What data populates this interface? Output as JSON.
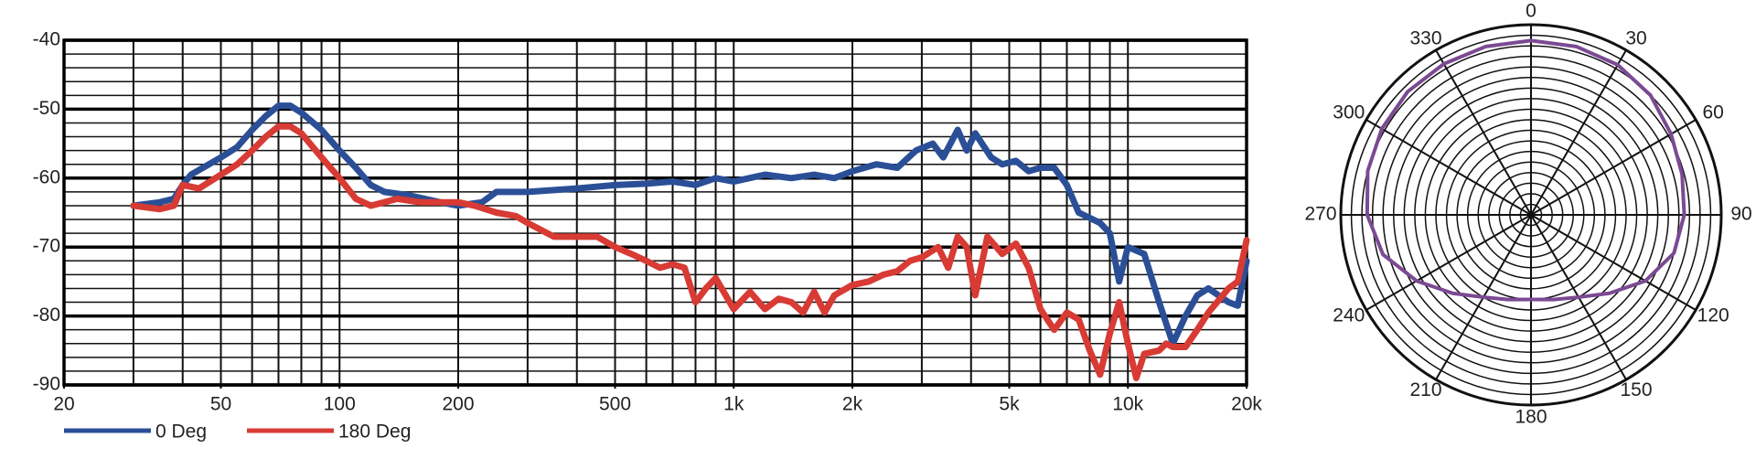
{
  "chart_data": [
    {
      "type": "line",
      "xscale": "log",
      "xlim": [
        20,
        20000
      ],
      "ylim": [
        -90,
        -40
      ],
      "yticks": [
        -40,
        -50,
        -60,
        -70,
        -80,
        -90
      ],
      "xticks": [
        20,
        50,
        100,
        200,
        500,
        {
          "value": 1000,
          "label": "1k"
        },
        {
          "value": 2000,
          "label": "2k"
        },
        {
          "value": 5000,
          "label": "5k"
        },
        {
          "value": 10000,
          "label": "10k"
        },
        {
          "value": 20000,
          "label": "20k"
        }
      ],
      "xgrid": [
        30,
        40,
        50,
        60,
        70,
        80,
        90,
        100,
        200,
        300,
        400,
        500,
        600,
        700,
        800,
        900,
        1000,
        2000,
        3000,
        4000,
        5000,
        6000,
        7000,
        8000,
        9000,
        10000
      ],
      "ygrid": [
        -42,
        -44,
        -46,
        -48,
        -52,
        -54,
        -56,
        -58,
        -62,
        -64,
        -66,
        -68,
        -72,
        -74,
        -76,
        -78,
        -82,
        -84,
        -86,
        -88
      ],
      "series": [
        {
          "name": "0 Deg",
          "color": "#2b4f97",
          "x": [
            30,
            35,
            38,
            40,
            42,
            50,
            55,
            60,
            65,
            70,
            75,
            80,
            90,
            100,
            110,
            120,
            130,
            150,
            180,
            200,
            230,
            250,
            300,
            400,
            500,
            600,
            700,
            800,
            900,
            1000,
            1200,
            1400,
            1600,
            1800,
            2000,
            2300,
            2600,
            2900,
            3200,
            3400,
            3700,
            3900,
            4100,
            4500,
            4800,
            5200,
            5600,
            6000,
            6500,
            7000,
            7500,
            8500,
            9000,
            9500,
            10000,
            11000,
            12000,
            13000,
            14000,
            15000,
            16000,
            18000,
            19000,
            20000
          ],
          "values": [
            -64,
            -63.5,
            -63,
            -61,
            -59.5,
            -57,
            -55.5,
            -53,
            -51,
            -49.5,
            -49.5,
            -50.5,
            -53,
            -56,
            -58.5,
            -61,
            -62,
            -62.5,
            -63.5,
            -64,
            -63.5,
            -62,
            -62,
            -61.5,
            -61,
            -60.8,
            -60.5,
            -61,
            -60,
            -60.5,
            -59.5,
            -60,
            -59.5,
            -60,
            -59,
            -58,
            -58.5,
            -56,
            -55,
            -57,
            -53,
            -56,
            -53.5,
            -57,
            -58,
            -57.5,
            -59,
            -58.5,
            -58.5,
            -61,
            -65,
            -66.5,
            -68,
            -75,
            -70,
            -71,
            -78,
            -84,
            -80,
            -77,
            -76,
            -78,
            -78.5,
            -72
          ]
        },
        {
          "name": "180 Deg",
          "color": "#d83a34",
          "x": [
            30,
            35,
            38,
            40,
            44,
            50,
            55,
            60,
            65,
            70,
            75,
            80,
            90,
            100,
            110,
            120,
            130,
            140,
            160,
            180,
            200,
            220,
            250,
            280,
            300,
            350,
            400,
            450,
            500,
            550,
            600,
            650,
            700,
            750,
            800,
            850,
            900,
            1000,
            1100,
            1200,
            1300,
            1400,
            1500,
            1600,
            1700,
            1800,
            2000,
            2200,
            2400,
            2600,
            2800,
            3000,
            3300,
            3500,
            3700,
            3900,
            4100,
            4400,
            4800,
            5200,
            5600,
            6000,
            6500,
            7000,
            7500,
            8000,
            8500,
            9000,
            9500,
            10000,
            10500,
            11000,
            12000,
            12500,
            13000,
            14000,
            15000,
            16000,
            18000,
            19000,
            20000
          ],
          "values": [
            -64,
            -64.5,
            -64,
            -61,
            -61.5,
            -59.5,
            -58,
            -56,
            -54,
            -52.5,
            -52.5,
            -53.5,
            -57,
            -60,
            -63,
            -64,
            -63.5,
            -63,
            -63.5,
            -63.5,
            -63.5,
            -64,
            -65,
            -65.5,
            -66.5,
            -68.5,
            -68.5,
            -68.5,
            -70,
            -71,
            -72,
            -73,
            -72.5,
            -73,
            -78,
            -76,
            -74.5,
            -79,
            -76.5,
            -79,
            -77.5,
            -78,
            -79.5,
            -76.5,
            -79.5,
            -77,
            -75.5,
            -75,
            -74,
            -73.5,
            -72,
            -71.5,
            -70,
            -73,
            -68.5,
            -70,
            -77,
            -68.5,
            -71,
            -69.5,
            -73,
            -79,
            -82,
            -79.5,
            -80.5,
            -85,
            -88.5,
            -82.5,
            -78,
            -84,
            -89,
            -85.5,
            -85,
            -84,
            -84.5,
            -84.5,
            -82,
            -79.5,
            -76,
            -75,
            -69
          ]
        }
      ]
    },
    {
      "type": "polar",
      "rlim": [
        0,
        18
      ],
      "rgrid": [
        1,
        2,
        3,
        4,
        5,
        6,
        7,
        8,
        9,
        10,
        11,
        12,
        13,
        14,
        15,
        16,
        17,
        18
      ],
      "thetaticks": [
        0,
        30,
        60,
        90,
        120,
        150,
        180,
        210,
        240,
        270,
        300,
        330
      ],
      "series": [
        {
          "color": "#7b4a93",
          "theta": [
            0,
            15,
            30,
            45,
            60,
            75,
            90,
            105,
            120,
            135,
            150,
            165,
            180,
            195,
            210,
            225,
            240,
            255,
            270,
            285,
            300,
            315,
            330,
            345
          ],
          "r": [
            16.5,
            16.5,
            16.4,
            16,
            15.3,
            14.8,
            14.5,
            14,
            12.5,
            10.5,
            9,
            8.3,
            8,
            8.3,
            9,
            10.5,
            12.5,
            14.5,
            15.5,
            16,
            16.3,
            16.5,
            16.5,
            16.5
          ]
        }
      ]
    }
  ]
}
